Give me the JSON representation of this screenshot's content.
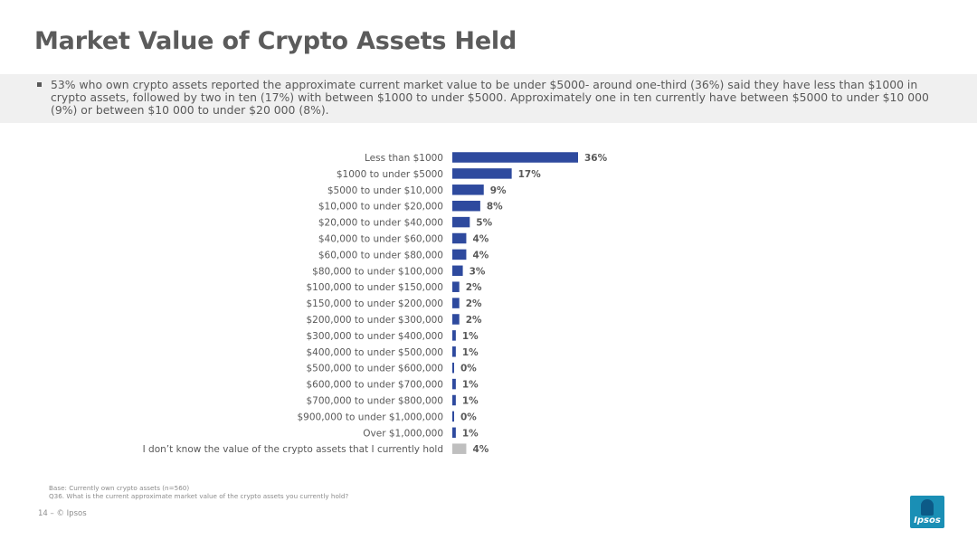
{
  "header": {
    "title": "Market Value of Crypto Assets Held",
    "summary": "53% who own crypto assets reported the approximate current market value to be under $5000- around one-third (36%) said they have less than $1000 in crypto assets, followed by two in ten (17%) with between $1000 to under $5000.  Approximately one in ten currently have between $5000 to under $10 000 (9%) or between $10 000 to under $20 000 (8%)."
  },
  "chart_data": {
    "type": "bar",
    "orientation": "horizontal",
    "categories": [
      "Less than $1000",
      "$1000 to under $5000",
      "$5000 to under $10,000",
      "$10,000 to under $20,000",
      "$20,000 to under $40,000",
      "$40,000 to under $60,000",
      "$60,000 to under $80,000",
      "$80,000 to under $100,000",
      "$100,000 to under $150,000",
      "$150,000 to under $200,000",
      "$200,000 to under $300,000",
      "$300,000 to under $400,000",
      "$400,000 to under $500,000",
      "$500,000 to under $600,000",
      "$600,000 to under $700,000",
      "$700,000 to under $800,000",
      "$900,000 to under $1,000,000",
      "Over $1,000,000",
      "I don’t know the value of the crypto assets that I currently hold"
    ],
    "values": [
      36,
      17,
      9,
      8,
      5,
      4,
      4,
      3,
      2,
      2,
      2,
      1,
      1,
      0,
      1,
      1,
      0,
      1,
      4
    ],
    "value_labels": [
      "36%",
      "17%",
      "9%",
      "8%",
      "5%",
      "4%",
      "4%",
      "3%",
      "2%",
      "2%",
      "2%",
      "1%",
      "1%",
      "0%",
      "1%",
      "1%",
      "0%",
      "1%",
      "4%"
    ],
    "bar_colors": [
      "#2e4a9e",
      "#2e4a9e",
      "#2e4a9e",
      "#2e4a9e",
      "#2e4a9e",
      "#2e4a9e",
      "#2e4a9e",
      "#2e4a9e",
      "#2e4a9e",
      "#2e4a9e",
      "#2e4a9e",
      "#2e4a9e",
      "#2e4a9e",
      "#2e4a9e",
      "#2e4a9e",
      "#2e4a9e",
      "#2e4a9e",
      "#2e4a9e",
      "#bfbfbf"
    ],
    "xlim": [
      0,
      36
    ],
    "grid": false,
    "legend": "none"
  },
  "footer": {
    "base": "Base: Currently own crypto assets (n=560)",
    "question": "Q36. What is the current approximate market value of the crypto assets you currently hold?",
    "page": "14 –    © Ipsos"
  },
  "logo": {
    "text": "Ipsos",
    "color": "#1a8fb5"
  }
}
